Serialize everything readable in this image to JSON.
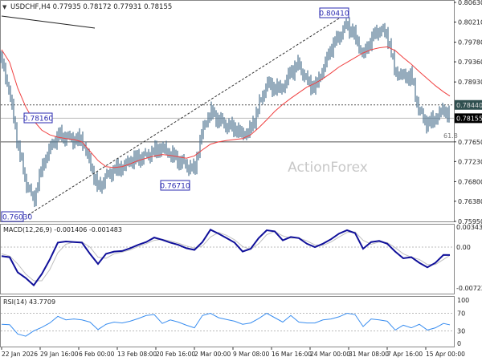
{
  "header": {
    "symbol_info": "USDCHF,H4  0.77935 0.78172 0.77931 0.78155"
  },
  "watermark": "ActionForex",
  "colors": {
    "bars": "#4f7591",
    "ma": "#f04040",
    "macd": "#10109a",
    "signal": "#c0c0c0",
    "rsi": "#3a8ef0",
    "label_box": "#2b2bb0"
  },
  "annotations": {
    "high_label": "0.80410",
    "left_label": "0.78160",
    "mid_low_label": "0.76710",
    "low_label": "0.76030",
    "fib_label": "61.8"
  },
  "chart_data": [
    {
      "type": "ohlc",
      "title": "USDCHF,H4",
      "ylim": [
        0.7595,
        0.8063
      ],
      "y_ticks": [
        "0.80630",
        "0.80210",
        "0.79780",
        "0.79360",
        "0.78930",
        "0.78440",
        "0.78155",
        "0.77650",
        "0.77230",
        "0.76800",
        "0.76380",
        "0.75950"
      ],
      "current_price": "0.78155",
      "marked_level": "0.78440",
      "levels": {
        "support": 0.7765,
        "resistance": 0.7844,
        "current": 0.78155
      },
      "x_ticks": [
        "22 Jan 2026",
        "29 Jan 16:00",
        "6 Feb 00:00",
        "13 Feb 08:00",
        "20 Feb 16:00",
        "2 Mar 00:00",
        "9 Mar 08:00",
        "16 Mar 16:00",
        "24 Mar 00:00",
        "31 Mar 08:00",
        "7 Apr 16:00",
        "15 Apr 00:00"
      ],
      "close": [
        0.794,
        0.787,
        0.7761,
        0.768,
        0.764,
        0.771,
        0.775,
        0.778,
        0.7775,
        0.777,
        0.777,
        0.772,
        0.7665,
        0.769,
        0.7705,
        0.771,
        0.7725,
        0.773,
        0.7735,
        0.7745,
        0.7752,
        0.774,
        0.7725,
        0.7715,
        0.7705,
        0.779,
        0.783,
        0.7812,
        0.78,
        0.7795,
        0.778,
        0.779,
        0.784,
        0.7889,
        0.788,
        0.788,
        0.7915,
        0.7931,
        0.7895,
        0.788,
        0.792,
        0.7966,
        0.799,
        0.8017,
        0.799,
        0.7949,
        0.7985,
        0.8005,
        0.7995,
        0.7914,
        0.7905,
        0.7905,
        0.7829,
        0.7803,
        0.7815,
        0.7835,
        0.78155
      ],
      "ma": [
        0.7962,
        0.7935,
        0.788,
        0.784,
        0.781,
        0.779,
        0.778,
        0.7775,
        0.7772,
        0.777,
        0.7765,
        0.7745,
        0.7725,
        0.7712,
        0.771,
        0.7712,
        0.7718,
        0.7725,
        0.773,
        0.7735,
        0.7738,
        0.7736,
        0.7733,
        0.773,
        0.7735,
        0.7748,
        0.776,
        0.7765,
        0.7768,
        0.777,
        0.7772,
        0.778,
        0.7795,
        0.7812,
        0.783,
        0.7845,
        0.7858,
        0.787,
        0.7882,
        0.789,
        0.79,
        0.7912,
        0.7925,
        0.7935,
        0.7945,
        0.7955,
        0.7962,
        0.7966,
        0.7968,
        0.796,
        0.7945,
        0.7931,
        0.7915,
        0.79,
        0.7885,
        0.7872,
        0.7863
      ]
    },
    {
      "type": "line",
      "title": "MACD(12,26,9) -0.001406 -0.001483",
      "y_ticks": [
        "0.003432",
        "0.00",
        "-0.007223"
      ],
      "ylim": [
        -0.007223,
        0.003432
      ],
      "series": [
        {
          "name": "MACD",
          "values": [
            -0.0016,
            -0.0018,
            -0.0045,
            -0.0055,
            -0.0068,
            -0.0048,
            -0.0022,
            0.0008,
            0.001,
            0.0009,
            0.0008,
            -0.0012,
            -0.003,
            -0.0012,
            -0.0008,
            -0.0007,
            -0.0002,
            0.0004,
            0.0009,
            0.0017,
            0.0013,
            0.0008,
            0.0004,
            -0.0002,
            -0.0005,
            0.0009,
            0.0031,
            0.0024,
            0.0016,
            0.0008,
            -0.0008,
            -0.0003,
            0.0016,
            0.003,
            0.0028,
            0.0012,
            0.0018,
            0.0016,
            0.0006,
            0.0,
            0.0006,
            0.0014,
            0.0024,
            0.003,
            0.0025,
            -0.0003,
            0.0009,
            0.0011,
            0.0006,
            -0.0008,
            -0.002,
            -0.0018,
            -0.0028,
            -0.0036,
            -0.0028,
            -0.0014,
            -0.001406
          ]
        },
        {
          "name": "Signal",
          "values": [
            -0.0012,
            -0.0016,
            -0.003,
            -0.0048,
            -0.006,
            -0.006,
            -0.004,
            -0.001,
            0.0005,
            0.0009,
            0.0009,
            0.0,
            -0.0018,
            -0.002,
            -0.0012,
            -0.0009,
            -0.0005,
            0.0001,
            0.0006,
            0.0012,
            0.0014,
            0.0011,
            0.0007,
            0.0002,
            -0.0002,
            0.0002,
            0.0018,
            0.0026,
            0.0021,
            0.0013,
            0.0001,
            -0.0004,
            0.0006,
            0.0022,
            0.0028,
            0.002,
            0.0016,
            0.0016,
            0.0011,
            0.0004,
            0.0003,
            0.0009,
            0.0018,
            0.0026,
            0.0027,
            0.0012,
            0.0005,
            0.0009,
            0.0008,
            -0.0001,
            -0.0012,
            -0.0018,
            -0.0022,
            -0.0031,
            -0.0031,
            -0.0022,
            -0.001483
          ]
        }
      ]
    },
    {
      "type": "line",
      "title": "RSI(14) 43.7709",
      "y_ticks": [
        "100",
        "70",
        "30",
        "0"
      ],
      "ylim": [
        0,
        100
      ],
      "levels": [
        70,
        30
      ],
      "series": [
        {
          "name": "RSI",
          "values": [
            45,
            44,
            23,
            18,
            30,
            38,
            48,
            63,
            55,
            57,
            55,
            50,
            33,
            45,
            50,
            48,
            52,
            58,
            65,
            67,
            47,
            55,
            50,
            43,
            37,
            65,
            70,
            60,
            56,
            52,
            45,
            48,
            58,
            70,
            60,
            50,
            65,
            50,
            48,
            48,
            55,
            57,
            62,
            70,
            67,
            40,
            57,
            55,
            52,
            32,
            43,
            37,
            45,
            32,
            37,
            47,
            43.77
          ]
        }
      ]
    }
  ]
}
